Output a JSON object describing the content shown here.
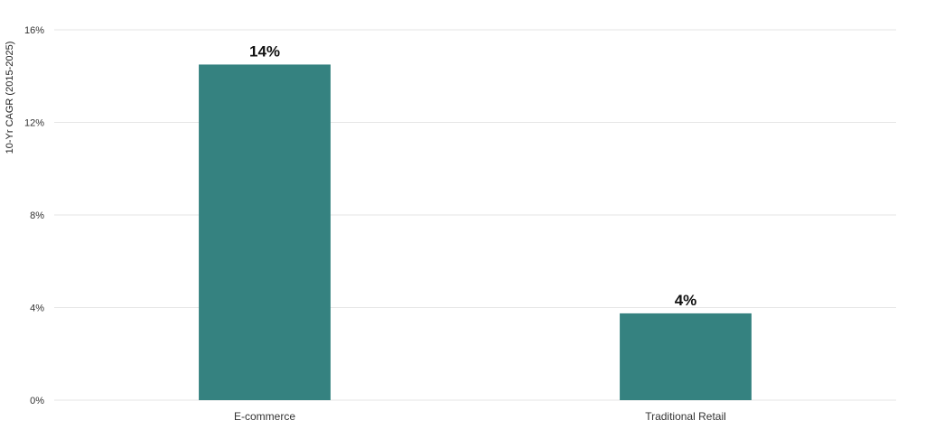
{
  "chart_data": {
    "type": "bar",
    "title": "",
    "xlabel": "",
    "ylabel": "10-Yr CAGR (2015-2025)",
    "categories": [
      "E-commerce",
      "Traditional Retail"
    ],
    "values": [
      14.5,
      3.75
    ],
    "data_labels": [
      "14%",
      "4%"
    ],
    "ylim": [
      0,
      16
    ],
    "yticks": [
      0,
      4,
      8,
      12,
      16
    ],
    "ytick_labels": [
      "0%",
      "4%",
      "8%",
      "12%",
      "16%"
    ],
    "grid": true,
    "legend": "none",
    "bar_color": "#358280"
  }
}
